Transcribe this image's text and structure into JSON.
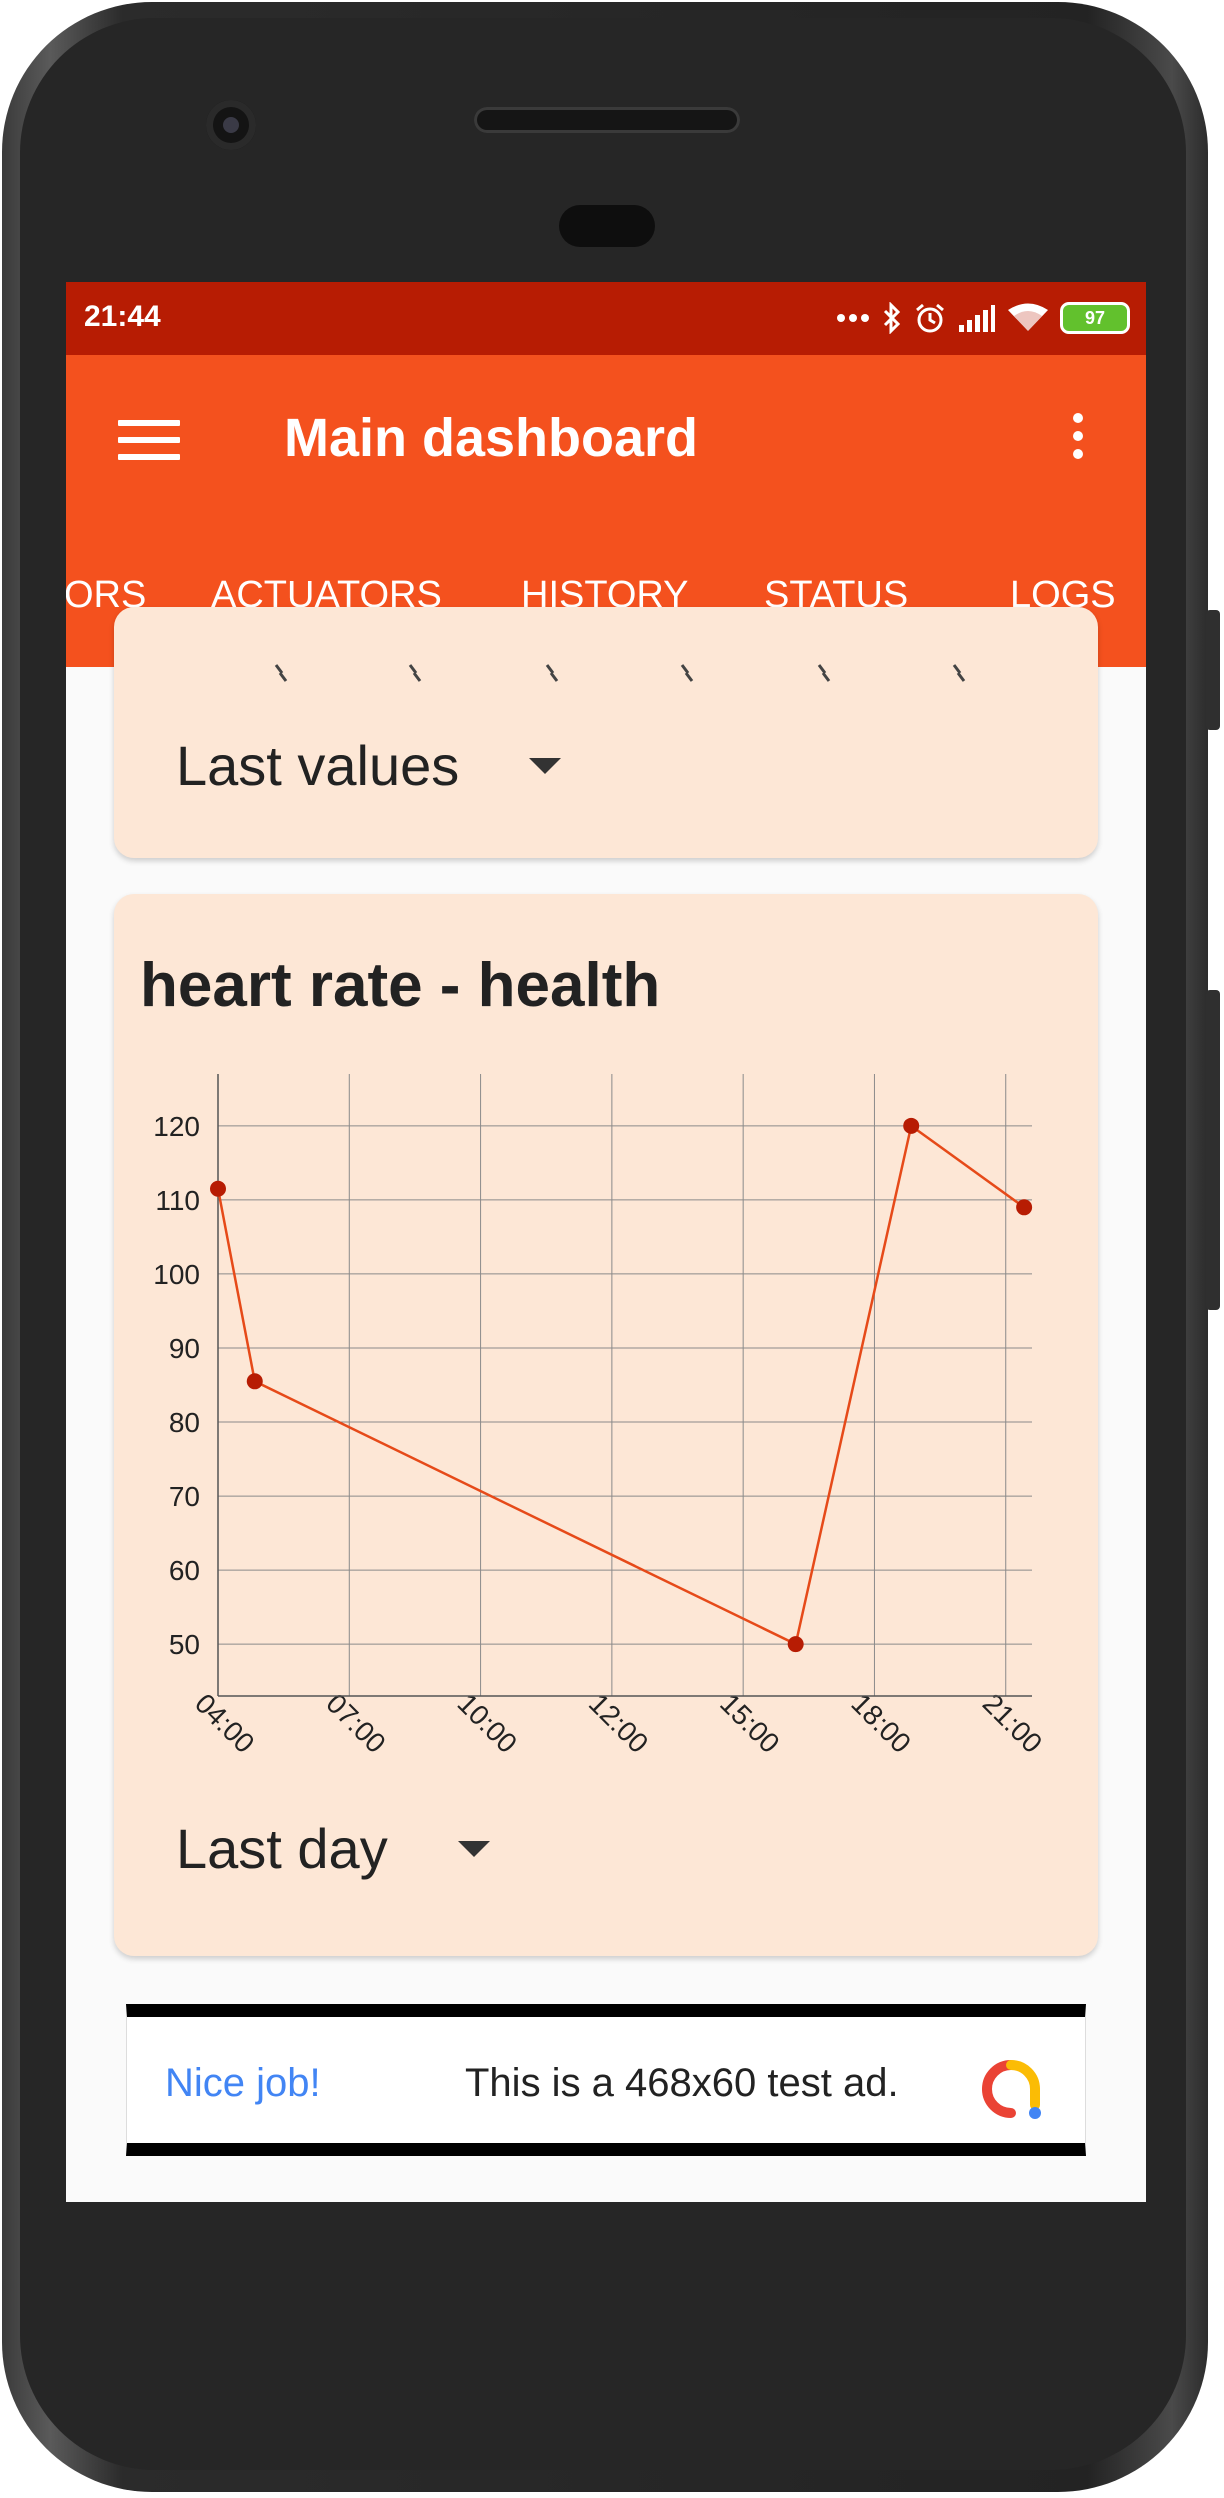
{
  "status_bar": {
    "time": "21:44",
    "battery": "97",
    "icons": [
      "more-dots-icon",
      "bluetooth-icon",
      "alarm-icon",
      "signal-icon",
      "wifi-icon",
      "battery-icon"
    ]
  },
  "app_bar": {
    "title": "Main dashboard",
    "menu_icon": "hamburger-menu-icon",
    "more_icon": "more-vert-icon"
  },
  "tabs": [
    {
      "label": "ORS"
    },
    {
      "label": "ACTUATORS"
    },
    {
      "label": "HISTORY",
      "selected": true
    },
    {
      "label": "STATUS"
    },
    {
      "label": "LOGS"
    }
  ],
  "colors": {
    "app_bar": "#f4511e",
    "status_bar": "#b71c03",
    "tab_indicator": "#42a5f5",
    "card_bg": "#fde7d6",
    "series_line": "#e64a19",
    "series_point": "#b71c03"
  },
  "cards": [
    {
      "range_select": "Last values"
    },
    {
      "title": "heart rate - health",
      "range_select": "Last day"
    }
  ],
  "chart_data": {
    "type": "line",
    "title": "heart rate - health",
    "xlabel": "",
    "ylabel": "",
    "x_ticks": [
      "04:00",
      "07:00",
      "10:00",
      "12:00",
      "15:00",
      "18:00",
      "21:00"
    ],
    "y_ticks": [
      50,
      60,
      70,
      80,
      90,
      100,
      110,
      120
    ],
    "xlim": [
      0,
      6.2
    ],
    "ylim": [
      43,
      127
    ],
    "grid": true,
    "series": [
      {
        "x": [
          0.0,
          0.28,
          4.4,
          5.28,
          6.14
        ],
        "values": [
          111.5,
          85.5,
          50,
          120,
          109
        ]
      }
    ]
  },
  "ad": {
    "left_text": "Nice job!",
    "center_text": "This is a 468x60 test ad."
  }
}
